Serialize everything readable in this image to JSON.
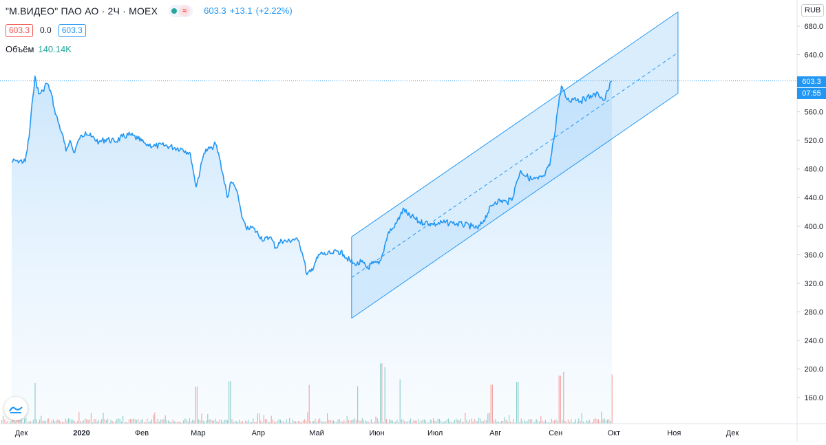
{
  "header": {
    "symbol": "\"М.ВИДЕО\" ПАО АО · 2Ч · MOEX",
    "last": "603.3",
    "change": "+13.1",
    "change_pct": "(+2.22%)",
    "bid": "603.3",
    "spread": "0.0",
    "ask": "603.3",
    "volume_label": "Объём",
    "volume_value": "140.14K",
    "status_icon": "market-open-dot",
    "wave_icon": "≈"
  },
  "axis": {
    "currency": "RUB",
    "price_tag": "603.3",
    "countdown": "07:55"
  },
  "colors": {
    "line": "#2196f3",
    "channel_fill": "#bbdefb",
    "area_fill": "#e3f2fd",
    "volume_up": "#26a69a",
    "volume_down": "#ef5350",
    "accent": "#2196f3"
  },
  "chart_data": {
    "type": "area",
    "title": "",
    "xlabel": "",
    "ylabel": "",
    "ylim": [
      118,
      700
    ],
    "xlim": [
      "2019-11-26",
      "2020-12-31"
    ],
    "yticks": [
      680,
      640,
      600,
      560,
      520,
      480,
      440,
      400,
      360,
      320,
      280,
      240,
      200,
      160
    ],
    "ytick_labels": [
      "680.0",
      "640.0",
      "600.0",
      "560.0",
      "520.0",
      "480.0",
      "440.0",
      "400.0",
      "360.0",
      "320.0",
      "280.0",
      "240.0",
      "200.0",
      "160.0"
    ],
    "xticks": [
      {
        "date": "2019-12-01",
        "label": "Дек"
      },
      {
        "date": "2020-01-01",
        "label": "2020"
      },
      {
        "date": "2020-02-01",
        "label": "Фев"
      },
      {
        "date": "2020-03-01",
        "label": "Мар"
      },
      {
        "date": "2020-04-01",
        "label": "Апр"
      },
      {
        "date": "2020-05-01",
        "label": "Май"
      },
      {
        "date": "2020-06-01",
        "label": "Июн"
      },
      {
        "date": "2020-07-01",
        "label": "Июл"
      },
      {
        "date": "2020-08-01",
        "label": "Авг"
      },
      {
        "date": "2020-09-01",
        "label": "Сен"
      },
      {
        "date": "2020-10-01",
        "label": "Окт"
      },
      {
        "date": "2020-11-01",
        "label": "Ноя"
      },
      {
        "date": "2020-12-01",
        "label": "Дек"
      }
    ],
    "price_series": {
      "name": "",
      "points": [
        [
          "2019-11-26",
          490
        ],
        [
          "2019-11-29",
          492
        ],
        [
          "2019-12-03",
          490
        ],
        [
          "2019-12-05",
          525
        ],
        [
          "2019-12-07",
          582
        ],
        [
          "2019-12-08",
          610
        ],
        [
          "2019-12-10",
          585
        ],
        [
          "2019-12-12",
          590
        ],
        [
          "2019-12-14",
          600
        ],
        [
          "2019-12-16",
          590
        ],
        [
          "2019-12-18",
          565
        ],
        [
          "2019-12-20",
          545
        ],
        [
          "2019-12-22",
          530
        ],
        [
          "2019-12-24",
          505
        ],
        [
          "2019-12-26",
          520
        ],
        [
          "2019-12-28",
          503
        ],
        [
          "2019-12-31",
          522
        ],
        [
          "2020-01-03",
          532
        ],
        [
          "2020-01-06",
          525
        ],
        [
          "2020-01-10",
          518
        ],
        [
          "2020-01-14",
          522
        ],
        [
          "2020-01-18",
          518
        ],
        [
          "2020-01-22",
          525
        ],
        [
          "2020-01-26",
          528
        ],
        [
          "2020-01-30",
          522
        ],
        [
          "2020-02-03",
          515
        ],
        [
          "2020-02-08",
          512
        ],
        [
          "2020-02-13",
          513
        ],
        [
          "2020-02-18",
          510
        ],
        [
          "2020-02-22",
          508
        ],
        [
          "2020-02-26",
          502
        ],
        [
          "2020-02-28",
          470
        ],
        [
          "2020-02-29",
          455
        ],
        [
          "2020-03-02",
          478
        ],
        [
          "2020-03-04",
          502
        ],
        [
          "2020-03-06",
          508
        ],
        [
          "2020-03-08",
          510
        ],
        [
          "2020-03-10",
          515
        ],
        [
          "2020-03-12",
          495
        ],
        [
          "2020-03-14",
          470
        ],
        [
          "2020-03-16",
          440
        ],
        [
          "2020-03-18",
          462
        ],
        [
          "2020-03-20",
          455
        ],
        [
          "2020-03-22",
          435
        ],
        [
          "2020-03-24",
          410
        ],
        [
          "2020-03-26",
          395
        ],
        [
          "2020-03-28",
          400
        ],
        [
          "2020-03-31",
          392
        ],
        [
          "2020-04-04",
          380
        ],
        [
          "2020-04-07",
          385
        ],
        [
          "2020-04-10",
          370
        ],
        [
          "2020-04-13",
          380
        ],
        [
          "2020-04-16",
          378
        ],
        [
          "2020-04-19",
          382
        ],
        [
          "2020-04-22",
          378
        ],
        [
          "2020-04-24",
          358
        ],
        [
          "2020-04-26",
          332
        ],
        [
          "2020-04-28",
          336
        ],
        [
          "2020-04-30",
          348
        ],
        [
          "2020-05-03",
          362
        ],
        [
          "2020-05-06",
          360
        ],
        [
          "2020-05-09",
          362
        ],
        [
          "2020-05-12",
          365
        ],
        [
          "2020-05-15",
          360
        ],
        [
          "2020-05-18",
          352
        ],
        [
          "2020-05-21",
          345
        ],
        [
          "2020-05-24",
          350
        ],
        [
          "2020-05-27",
          341
        ],
        [
          "2020-05-30",
          348
        ],
        [
          "2020-06-02",
          347
        ],
        [
          "2020-06-03",
          352
        ],
        [
          "2020-06-05",
          372
        ],
        [
          "2020-06-07",
          392
        ],
        [
          "2020-06-10",
          398
        ],
        [
          "2020-06-13",
          415
        ],
        [
          "2020-06-15",
          424
        ],
        [
          "2020-06-17",
          415
        ],
        [
          "2020-06-20",
          412
        ],
        [
          "2020-06-23",
          405
        ],
        [
          "2020-06-26",
          406
        ],
        [
          "2020-06-30",
          402
        ],
        [
          "2020-07-05",
          405
        ],
        [
          "2020-07-10",
          404
        ],
        [
          "2020-07-15",
          402
        ],
        [
          "2020-07-20",
          400
        ],
        [
          "2020-07-23",
          396
        ],
        [
          "2020-07-26",
          408
        ],
        [
          "2020-07-28",
          418
        ],
        [
          "2020-07-30",
          428
        ],
        [
          "2020-08-01",
          434
        ],
        [
          "2020-08-04",
          436
        ],
        [
          "2020-08-07",
          433
        ],
        [
          "2020-08-10",
          440
        ],
        [
          "2020-08-12",
          462
        ],
        [
          "2020-08-14",
          478
        ],
        [
          "2020-08-17",
          470
        ],
        [
          "2020-08-20",
          465
        ],
        [
          "2020-08-23",
          466
        ],
        [
          "2020-08-26",
          470
        ],
        [
          "2020-08-29",
          485
        ],
        [
          "2020-08-31",
          520
        ],
        [
          "2020-09-02",
          562
        ],
        [
          "2020-09-04",
          596
        ],
        [
          "2020-09-06",
          582
        ],
        [
          "2020-09-08",
          575
        ],
        [
          "2020-09-11",
          580
        ],
        [
          "2020-09-14",
          575
        ],
        [
          "2020-09-17",
          580
        ],
        [
          "2020-09-20",
          582
        ],
        [
          "2020-09-23",
          585
        ],
        [
          "2020-09-26",
          576
        ],
        [
          "2020-09-28",
          590
        ],
        [
          "2020-09-30",
          603.3
        ]
      ]
    },
    "regression_channel": {
      "start_date": "2020-05-19",
      "end_date": "2020-11-03",
      "upper": [
        385,
        700
      ],
      "mid": [
        328,
        643
      ],
      "lower": [
        271,
        586
      ]
    },
    "volume": {
      "max_label_value": 200,
      "spikes": [
        [
          "2019-12-08",
          165
        ],
        [
          "2020-02-29",
          150
        ],
        [
          "2020-03-17",
          172
        ],
        [
          "2020-04-27",
          158
        ],
        [
          "2020-05-22",
          152
        ],
        [
          "2020-06-03",
          245
        ],
        [
          "2020-06-05",
          230
        ],
        [
          "2020-06-13",
          180
        ],
        [
          "2020-07-30",
          158
        ],
        [
          "2020-08-12",
          170
        ],
        [
          "2020-09-03",
          195
        ],
        [
          "2020-09-05",
          210
        ],
        [
          "2020-09-30",
          200
        ]
      ]
    }
  }
}
